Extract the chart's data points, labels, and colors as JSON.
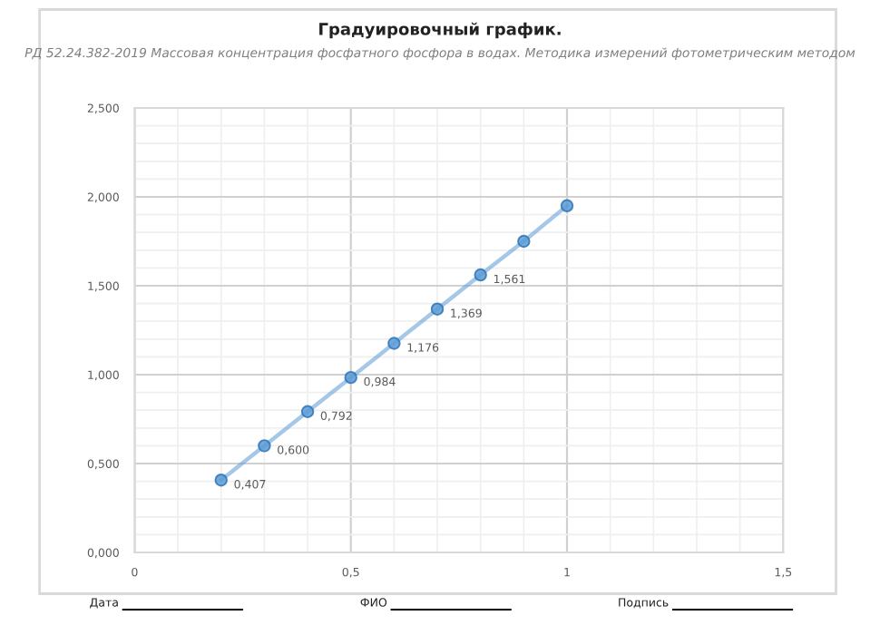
{
  "chart_data": {
    "type": "line",
    "title": "Градуировочный график.",
    "subtitle": "РД 52.24.382-2019 Массовая концентрация фосфатного фосфора в водах. Методика измерений фотометрическим методом",
    "x": [
      0.2,
      0.3,
      0.4,
      0.5,
      0.6,
      0.7,
      0.8,
      0.9,
      1.0
    ],
    "series": [
      {
        "color": "#5b9bd5",
        "values": [
          0.407,
          0.6,
          0.792,
          0.984,
          1.176,
          1.369,
          1.561,
          1.75,
          1.95
        ],
        "value_labels": [
          "0,407",
          "0,600",
          "0,792",
          "0,984",
          "1,176",
          "1,369",
          "1,561",
          null,
          null
        ]
      }
    ],
    "xlim": [
      0,
      1.5
    ],
    "xticks": [
      0,
      {
        "value": 0.5,
        "label": "0,5"
      },
      1,
      {
        "value": 1.5,
        "label": "1,5"
      }
    ],
    "ylim": [
      0,
      2.5
    ],
    "yticks": [
      {
        "value": 0,
        "label": "0,000"
      },
      {
        "value": 0.5,
        "label": "0,500"
      },
      {
        "value": 1.0,
        "label": "1,000"
      },
      {
        "value": 1.5,
        "label": "1,500"
      },
      {
        "value": 2.0,
        "label": "2,000"
      },
      {
        "value": 2.5,
        "label": "2,500"
      }
    ],
    "grid": true,
    "marker": "circle",
    "line_style": "solid",
    "legend": false,
    "annotations": [
      "Дата",
      "ФИО",
      "Подпись"
    ]
  }
}
